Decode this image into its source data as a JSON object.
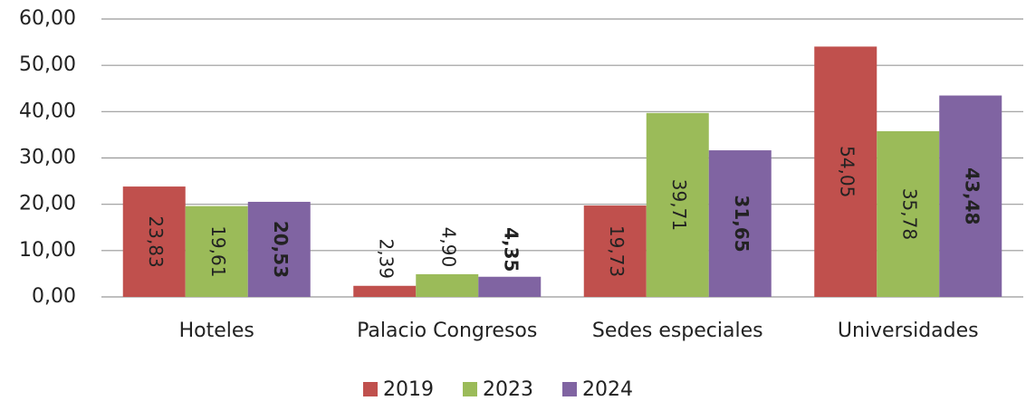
{
  "chart_data": {
    "type": "bar",
    "categories": [
      "Hoteles",
      "Palacio Congresos",
      "Sedes especiales",
      "Universidades"
    ],
    "series": [
      {
        "name": "2019",
        "color": "#c0504d",
        "values": [
          23.83,
          2.39,
          19.73,
          54.05
        ],
        "value_labels": [
          "23,83",
          "2,39",
          "19,73",
          "54,05"
        ]
      },
      {
        "name": "2023",
        "color": "#9bbb59",
        "values": [
          19.61,
          4.9,
          39.71,
          35.78
        ],
        "value_labels": [
          "19,61",
          "4,90",
          "39,71",
          "35,78"
        ]
      },
      {
        "name": "2024",
        "color": "#8064a2",
        "values": [
          20.53,
          4.35,
          31.65,
          43.48
        ],
        "value_labels": [
          "20,53",
          "4,35",
          "31,65",
          "43,48"
        ],
        "bold_labels": true
      }
    ],
    "ylim": [
      0,
      60
    ],
    "yticks": [
      {
        "value": 0,
        "label": "0,00"
      },
      {
        "value": 10,
        "label": "10,00"
      },
      {
        "value": 20,
        "label": "20,00"
      },
      {
        "value": 30,
        "label": "30,00"
      },
      {
        "value": 40,
        "label": "40,00"
      },
      {
        "value": 50,
        "label": "50,00"
      },
      {
        "value": 60,
        "label": "60,00"
      }
    ],
    "grid": true,
    "legend": "bottom"
  }
}
